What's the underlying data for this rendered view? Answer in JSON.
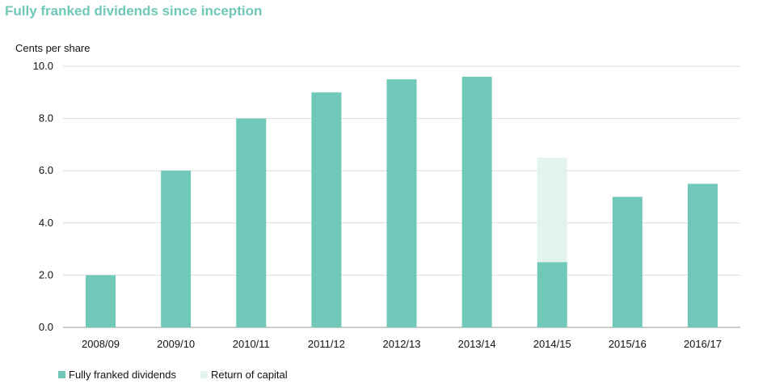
{
  "chart_data": {
    "type": "bar",
    "stacked": true,
    "title": "Fully franked dividends since inception",
    "ylabel": "Cents per share",
    "xlabel": "",
    "ylim": [
      0,
      10
    ],
    "yticks": [
      "0.0",
      "2.0",
      "4.0",
      "6.0",
      "8.0",
      "10.0"
    ],
    "categories": [
      "2008/09",
      "2009/10",
      "2010/11",
      "2011/12",
      "2012/13",
      "2013/14",
      "2014/15",
      "2015/16",
      "2016/17"
    ],
    "series": [
      {
        "name": "Fully franked dividends",
        "color": "#6fc8b8",
        "values": [
          2.0,
          6.0,
          8.0,
          9.0,
          9.5,
          9.6,
          2.5,
          5.0,
          5.5
        ]
      },
      {
        "name": "Return of capital",
        "color": "#e3f4f0",
        "values": [
          0,
          0,
          0,
          0,
          0,
          0,
          4.0,
          0,
          0
        ]
      }
    ],
    "grid": true,
    "legend_position": "bottom-left"
  }
}
